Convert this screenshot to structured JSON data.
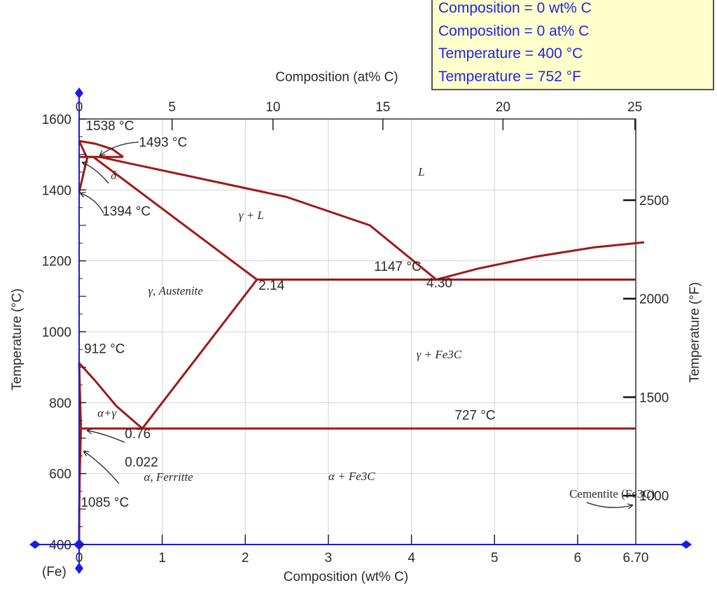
{
  "readout": {
    "lines": [
      "Composition = 0 wt% C",
      "Composition = 0 at% C",
      "Temperature = 400 °C",
      "Temperature = 752 °F"
    ]
  },
  "colors": {
    "phase_line": "#a01818",
    "axis": "#1a1aee",
    "grid": "#d4d4d4",
    "frame": "#222222",
    "readout_bg": "#ffffcc",
    "readout_text": "#2222ee"
  },
  "chart_data": {
    "type": "phase_diagram",
    "x_bottom": {
      "label": "Composition (wt% C)",
      "range": [
        0,
        6.7
      ],
      "ticks": [
        "0",
        "1",
        "2",
        "3",
        "4",
        "5",
        "6",
        "6.70"
      ],
      "tick_values": [
        0,
        1,
        2,
        3,
        4,
        5,
        6,
        6.7
      ],
      "origin_label": "(Fe)"
    },
    "x_top": {
      "label": "Composition (at% C)",
      "ticks": [
        "0",
        "5",
        "10",
        "15",
        "20",
        "25"
      ],
      "tick_values": [
        0,
        5,
        10,
        15,
        20,
        25
      ]
    },
    "y_left": {
      "label": "Temperature (°C)",
      "range": [
        400,
        1600
      ],
      "ticks": [
        "400",
        "600",
        "800",
        "1000",
        "1200",
        "1400",
        "1600"
      ],
      "tick_values": [
        400,
        600,
        800,
        1000,
        1200,
        1400,
        1600
      ]
    },
    "y_right": {
      "label": "Temperature (°F)",
      "ticks": [
        "1000",
        "1500",
        "2000",
        "2500"
      ],
      "tick_values": [
        1000,
        1500,
        2000,
        2500
      ]
    },
    "grid": true,
    "phase_boundaries": [
      {
        "segment": "liquidus-gamma",
        "points": [
          [
            0.25,
            1493
          ],
          [
            0.6,
            1475
          ],
          [
            1.5,
            1430
          ],
          [
            2.5,
            1380
          ],
          [
            3.5,
            1300
          ],
          [
            4.3,
            1147
          ]
        ]
      },
      {
        "segment": "liquidus-cementite",
        "points": [
          [
            4.3,
            1147
          ],
          [
            4.8,
            1178
          ],
          [
            5.5,
            1212
          ],
          [
            6.2,
            1238
          ],
          [
            6.8,
            1252
          ]
        ]
      },
      {
        "segment": "delta-liquidus",
        "points": [
          [
            0,
            1538
          ],
          [
            0.2,
            1530
          ],
          [
            0.4,
            1515
          ],
          [
            0.53,
            1493
          ]
        ]
      },
      {
        "segment": "peritectic",
        "points": [
          [
            0,
            1493
          ],
          [
            0.53,
            1493
          ]
        ]
      },
      {
        "segment": "delta-solvus",
        "points": [
          [
            0,
            1394
          ],
          [
            0.1,
            1493
          ]
        ]
      },
      {
        "segment": "delta-solidus",
        "points": [
          [
            0,
            1538
          ],
          [
            0.09,
            1493
          ]
        ]
      },
      {
        "segment": "gamma-solidus-upper",
        "points": [
          [
            0.09,
            1493
          ],
          [
            0.17,
            1493
          ]
        ]
      },
      {
        "segment": "solidus",
        "points": [
          [
            0.17,
            1493
          ],
          [
            2.14,
            1147
          ]
        ]
      },
      {
        "segment": "eutectic",
        "points": [
          [
            2.14,
            1147
          ],
          [
            6.7,
            1147
          ]
        ]
      },
      {
        "segment": "acm",
        "points": [
          [
            0.76,
            727
          ],
          [
            2.14,
            1147
          ]
        ]
      },
      {
        "segment": "a3",
        "points": [
          [
            0,
            912
          ],
          [
            0.2,
            860
          ],
          [
            0.45,
            790
          ],
          [
            0.76,
            727
          ]
        ]
      },
      {
        "segment": "alpha-gamma",
        "points": [
          [
            0,
            912
          ],
          [
            0.022,
            727
          ]
        ]
      },
      {
        "segment": "eutectoid",
        "points": [
          [
            0.022,
            727
          ],
          [
            6.7,
            727
          ]
        ]
      },
      {
        "segment": "alpha-solvus",
        "points": [
          [
            0.022,
            727
          ],
          [
            0.008,
            600
          ],
          [
            0.002,
            500
          ],
          [
            0,
            400
          ]
        ]
      }
    ],
    "annotations": [
      {
        "text": "1538 °C",
        "x": 0.08,
        "y": 1568
      },
      {
        "text": "1493 °C",
        "x": 0.72,
        "y": 1522
      },
      {
        "text": "1394 °C",
        "x": 0.28,
        "y": 1328
      },
      {
        "text": "1147 °C",
        "x": 3.55,
        "y": 1172
      },
      {
        "text": "2.14",
        "x": 2.16,
        "y": 1118
      },
      {
        "text": "4.30",
        "x": 4.18,
        "y": 1125
      },
      {
        "text": "912 °C",
        "x": 0.06,
        "y": 940
      },
      {
        "text": "727 °C",
        "x": 4.52,
        "y": 752
      },
      {
        "text": "0.76",
        "x": 0.55,
        "y": 700
      },
      {
        "text": "0.022",
        "x": 0.55,
        "y": 620
      },
      {
        "text": "1085 °C",
        "x": 0.02,
        "y": 507
      },
      {
        "text": "L",
        "x": 4.08,
        "y": 1440,
        "style": "serif"
      },
      {
        "text": "δ",
        "x": 0.38,
        "y": 1430,
        "style": "serif"
      },
      {
        "text": "γ + L",
        "x": 1.92,
        "y": 1318,
        "style": "serif"
      },
      {
        "text": "γ, Austenite",
        "x": 0.83,
        "y": 1105,
        "style": "serif"
      },
      {
        "text": "γ + Fe3C",
        "x": 4.06,
        "y": 925,
        "style": "serif"
      },
      {
        "text": "α+γ",
        "x": 0.22,
        "y": 760,
        "style": "serif"
      },
      {
        "text": "α, Ferritte",
        "x": 0.78,
        "y": 580,
        "style": "serif"
      },
      {
        "text": "α + Fe3C",
        "x": 3.0,
        "y": 582,
        "style": "serif"
      },
      {
        "text": "Cementite (Fe3C)",
        "x": 5.9,
        "y": 532,
        "style": "serif-up"
      }
    ]
  }
}
